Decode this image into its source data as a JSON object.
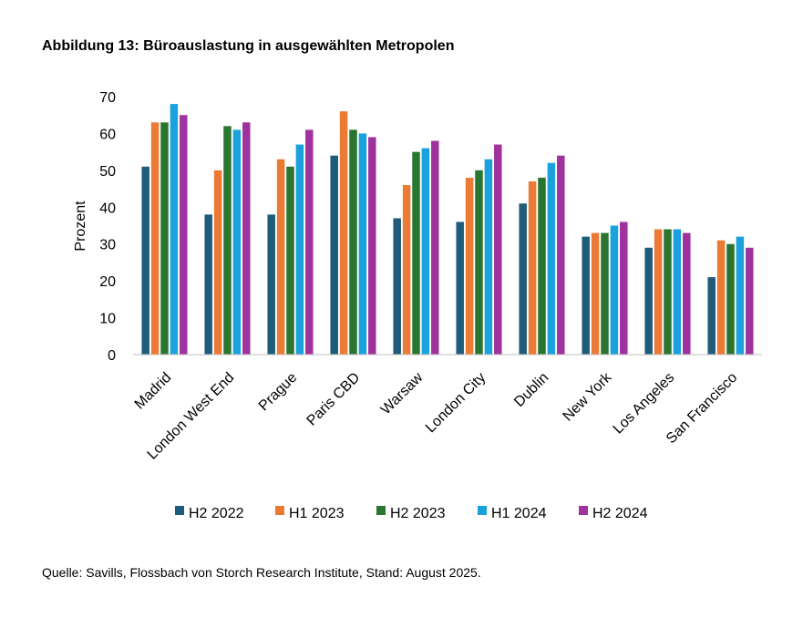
{
  "title": "Abbildung 13: Büroauslastung in ausgewählten Metropolen",
  "source": "Quelle: Savills, Flossbach von Storch Research Institute, Stand: August 2025.",
  "chart_data": {
    "type": "bar",
    "title": "Abbildung 13: Büroauslastung in ausgewählten Metropolen",
    "xlabel": "",
    "ylabel": "Prozent",
    "ylim": [
      0,
      70
    ],
    "yticks": [
      0,
      10,
      20,
      30,
      40,
      50,
      60,
      70
    ],
    "grid": false,
    "legend_position": "bottom",
    "categories": [
      "Madrid",
      "London West End",
      "Prague",
      "Paris CBD",
      "Warsaw",
      "London City",
      "Dublin",
      "New York",
      "Los Angeles",
      "San Francisco"
    ],
    "series": [
      {
        "name": "H2 2022",
        "color": "#1F5C7A",
        "values": [
          51,
          38,
          38,
          54,
          37,
          36,
          41,
          32,
          29,
          21
        ]
      },
      {
        "name": "H1 2023",
        "color": "#EB7A34",
        "values": [
          63,
          50,
          53,
          66,
          46,
          48,
          47,
          33,
          34,
          31
        ]
      },
      {
        "name": "H2 2023",
        "color": "#2A7530",
        "values": [
          63,
          62,
          51,
          61,
          55,
          50,
          48,
          33,
          34,
          30
        ]
      },
      {
        "name": "H1 2024",
        "color": "#1BA1DC",
        "values": [
          68,
          61,
          57,
          60,
          56,
          53,
          52,
          35,
          34,
          32
        ]
      },
      {
        "name": "H2 2024",
        "color": "#A0329E",
        "values": [
          65,
          63,
          61,
          59,
          58,
          57,
          54,
          36,
          33,
          29
        ]
      }
    ]
  }
}
